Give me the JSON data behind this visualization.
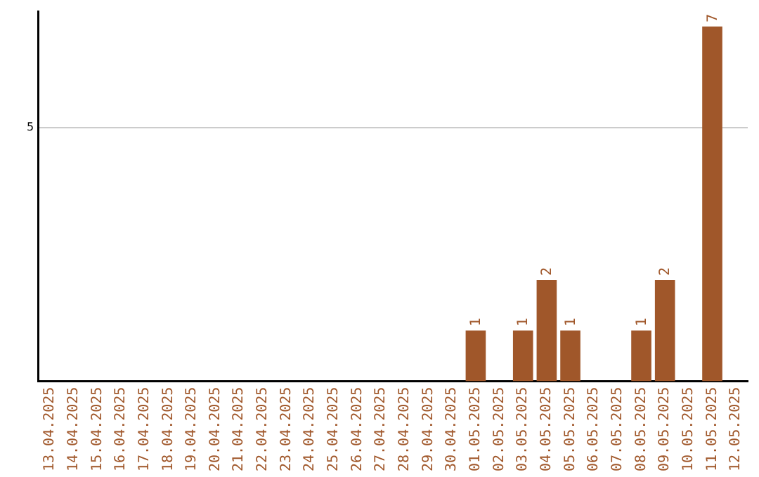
{
  "chart_data": {
    "type": "bar",
    "categories": [
      "13.04.2025",
      "14.04.2025",
      "15.04.2025",
      "16.04.2025",
      "17.04.2025",
      "18.04.2025",
      "19.04.2025",
      "20.04.2025",
      "21.04.2025",
      "22.04.2025",
      "23.04.2025",
      "24.04.2025",
      "25.04.2025",
      "26.04.2025",
      "27.04.2025",
      "28.04.2025",
      "29.04.2025",
      "30.04.2025",
      "01.05.2025",
      "02.05.2025",
      "03.05.2025",
      "04.05.2025",
      "05.05.2025",
      "06.05.2025",
      "07.05.2025",
      "08.05.2025",
      "09.05.2025",
      "10.05.2025",
      "11.05.2025",
      "12.05.2025"
    ],
    "values": [
      null,
      null,
      null,
      null,
      null,
      null,
      null,
      null,
      null,
      null,
      null,
      null,
      null,
      null,
      null,
      null,
      null,
      null,
      1,
      null,
      1,
      2,
      1,
      null,
      null,
      1,
      2,
      null,
      7,
      null
    ],
    "value_labels": [
      null,
      null,
      null,
      null,
      null,
      null,
      null,
      null,
      null,
      null,
      null,
      null,
      null,
      null,
      null,
      null,
      null,
      null,
      "1",
      null,
      "1",
      "2",
      "1",
      null,
      null,
      "1",
      "2",
      null,
      "7",
      null
    ],
    "color": "#a0572a",
    "ylim": [
      0,
      7.3
    ],
    "yticks": [
      5
    ],
    "grid": "y",
    "legend": false
  }
}
